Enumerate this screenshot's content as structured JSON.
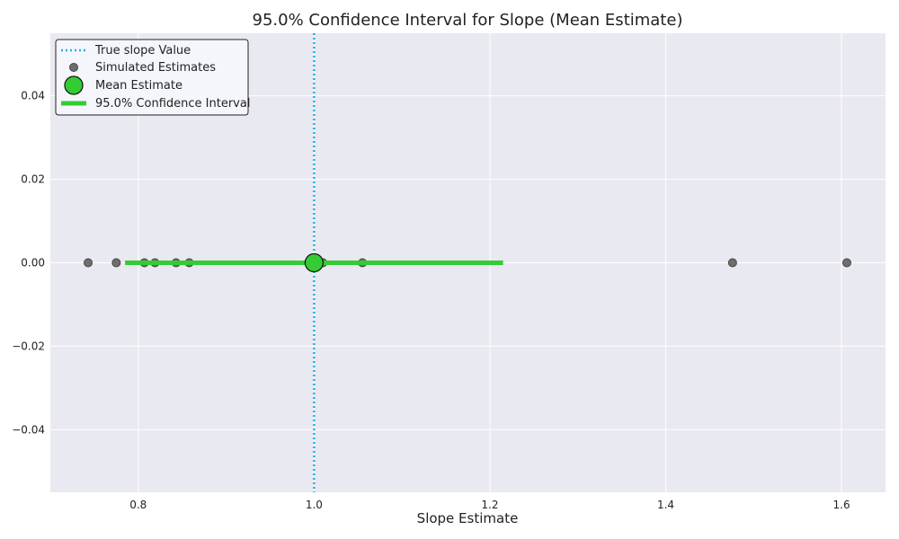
{
  "chart_data": {
    "type": "scatter",
    "title": "95.0% Confidence Interval for Slope (Mean Estimate)",
    "xlabel": "Slope Estimate",
    "ylabel": "",
    "xlim": [
      0.7,
      1.65
    ],
    "ylim": [
      -0.055,
      0.055
    ],
    "xticks": [
      0.8,
      1.0,
      1.2,
      1.4,
      1.6
    ],
    "xtick_labels": [
      "0.8",
      "1.0",
      "1.2",
      "1.4",
      "1.6"
    ],
    "yticks": [
      0.04,
      0.02,
      0.0,
      -0.02,
      -0.04
    ],
    "ytick_labels": [
      "0.04",
      "0.02",
      "0.00",
      "−0.02",
      "−0.04"
    ],
    "grid": true,
    "legend_position": "top-left",
    "true_slope": 1.0,
    "mean_estimate": 1.0,
    "confidence_interval": [
      0.785,
      1.215
    ],
    "simulated_estimates": [
      0.743,
      0.775,
      0.807,
      0.819,
      0.843,
      0.858,
      1.01,
      1.055,
      1.476,
      1.606
    ],
    "colors": {
      "true_line": "#1ab2ee",
      "ci_line": "#33cc33",
      "mean_marker": "#33cc33",
      "scatter": "#6e6e6e",
      "plot_bg": "#e9e9f1"
    },
    "legend": [
      {
        "id": "true",
        "label": "True slope Value"
      },
      {
        "id": "sim",
        "label": "Simulated Estimates"
      },
      {
        "id": "mean",
        "label": "Mean Estimate"
      },
      {
        "id": "ci",
        "label": "95.0% Confidence Interval"
      }
    ]
  }
}
